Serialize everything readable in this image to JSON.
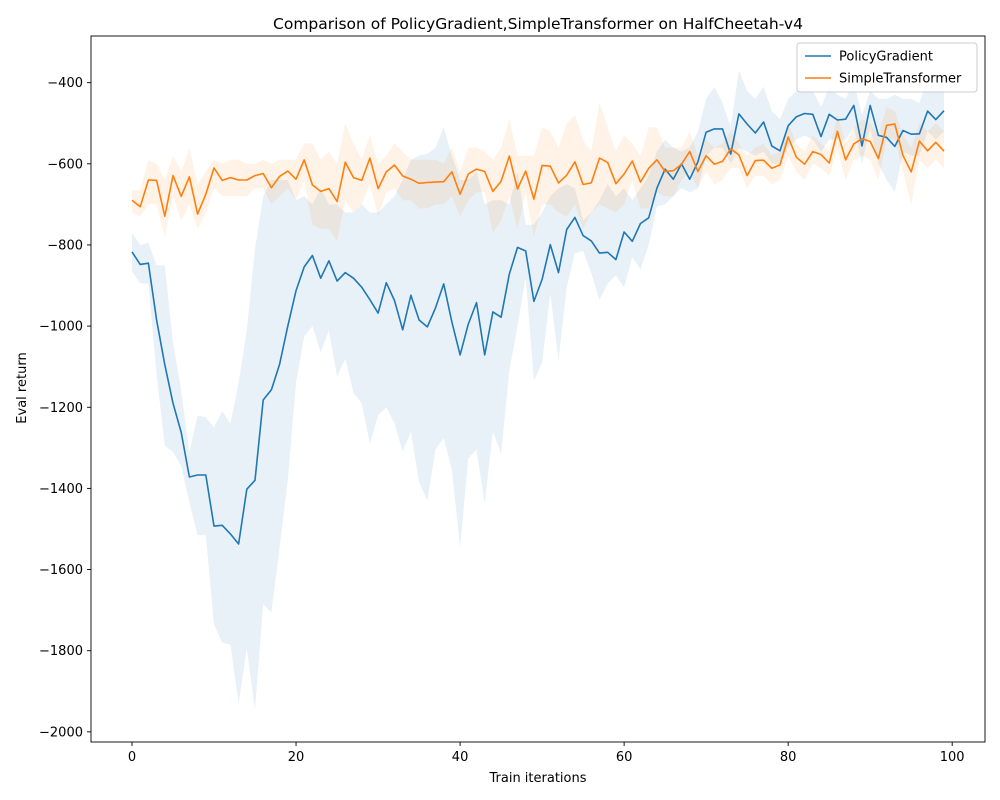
{
  "chart_data": {
    "type": "line",
    "title": "Comparison of PolicyGradient,SimpleTransformer on HalfCheetah-v4",
    "xlabel": "Train iterations",
    "ylabel": "Eval return",
    "xlim": [
      -5,
      104
    ],
    "ylim": [
      -2025,
      -285
    ],
    "xticks": [
      0,
      20,
      40,
      60,
      80,
      100
    ],
    "yticks": [
      -2000,
      -1800,
      -1600,
      -1400,
      -1200,
      -1000,
      -800,
      -600,
      -400
    ],
    "grid": false,
    "legend_position": "top-right",
    "series": [
      {
        "name": "PolicyGradient",
        "color": "#1f77b4",
        "values": [
          -817,
          -848,
          -845,
          -985,
          -1095,
          -1190,
          -1262,
          -1372,
          -1367,
          -1367,
          -1493,
          -1491,
          -1512,
          -1537,
          -1402,
          -1380,
          -1182,
          -1157,
          -1094,
          -1000,
          -913,
          -854,
          -826,
          -882,
          -839,
          -889,
          -868,
          -882,
          -904,
          -935,
          -968,
          -893,
          -937,
          -1009,
          -924,
          -985,
          -1002,
          -955,
          -896,
          -990,
          -1071,
          -995,
          -942,
          -1071,
          -965,
          -978,
          -872,
          -806,
          -815,
          -939,
          -885,
          -799,
          -868,
          -762,
          -732,
          -777,
          -790,
          -820,
          -818,
          -836,
          -768,
          -791,
          -747,
          -733,
          -660,
          -613,
          -638,
          -600,
          -638,
          -595,
          -522,
          -514,
          -514,
          -576,
          -477,
          -502,
          -524,
          -497,
          -556,
          -568,
          -506,
          -484,
          -476,
          -478,
          -533,
          -478,
          -492,
          -490,
          -456,
          -556,
          -456,
          -530,
          -535,
          -557,
          -518,
          -527,
          -526,
          -470,
          -491,
          -469
        ],
        "band_upper": [
          -770,
          -800,
          -795,
          -850,
          -850,
          -1040,
          -1160,
          -1310,
          -1220,
          -1225,
          -1250,
          -1210,
          -1240,
          -1140,
          -1010,
          -810,
          -680,
          -640,
          -640,
          -640,
          -690,
          -680,
          -700,
          -660,
          -700,
          -700,
          -720,
          -720,
          -700,
          -720,
          -720,
          -700,
          -680,
          -640,
          -590,
          -580,
          -575,
          -560,
          -510,
          -580,
          -640,
          -640,
          -620,
          -700,
          -690,
          -690,
          -700,
          -620,
          -750,
          -750,
          -720,
          -680,
          -660,
          -650,
          -660,
          -740,
          -720,
          -690,
          -650,
          -680,
          -660,
          -690,
          -660,
          -630,
          -570,
          -540,
          -560,
          -570,
          -560,
          -520,
          -440,
          -410,
          -450,
          -510,
          -370,
          -420,
          -440,
          -410,
          -470,
          -490,
          -440,
          -420,
          -410,
          -420,
          -460,
          -410,
          -430,
          -440,
          -400,
          -480,
          -420,
          -440,
          -440,
          -430,
          -440,
          -440,
          -450,
          -390,
          -420,
          -390
        ],
        "band_lower": [
          -865,
          -895,
          -895,
          -1120,
          -1295,
          -1310,
          -1345,
          -1435,
          -1515,
          -1515,
          -1735,
          -1780,
          -1785,
          -1930,
          -1795,
          -1945,
          -1685,
          -1705,
          -1545,
          -1380,
          -1140,
          -1025,
          -1000,
          -1065,
          -1010,
          -1125,
          -1080,
          -1165,
          -1190,
          -1290,
          -1220,
          -1200,
          -1240,
          -1310,
          -1260,
          -1385,
          -1430,
          -1305,
          -1275,
          -1355,
          -1545,
          -1325,
          -1305,
          -1435,
          -1260,
          -1315,
          -1110,
          -1000,
          -880,
          -1135,
          -1090,
          -920,
          -1085,
          -905,
          -820,
          -815,
          -870,
          -935,
          -895,
          -875,
          -905,
          -830,
          -860,
          -800,
          -705,
          -700,
          -680,
          -660,
          -670,
          -660,
          -580,
          -560,
          -560,
          -600,
          -560,
          -570,
          -580,
          -570,
          -600,
          -600,
          -560,
          -540,
          -530,
          -540,
          -570,
          -540,
          -540,
          -540,
          -510,
          -600,
          -510,
          -600,
          -640,
          -670,
          -570,
          -580,
          -580,
          -520,
          -540,
          -520
        ]
      },
      {
        "name": "SimpleTransformer",
        "color": "#ff7f0e",
        "values": [
          -690,
          -706,
          -640,
          -641,
          -729,
          -629,
          -680,
          -632,
          -724,
          -675,
          -610,
          -641,
          -634,
          -640,
          -640,
          -629,
          -624,
          -659,
          -631,
          -618,
          -638,
          -590,
          -652,
          -668,
          -661,
          -693,
          -596,
          -634,
          -641,
          -586,
          -661,
          -620,
          -603,
          -630,
          -638,
          -648,
          -646,
          -645,
          -644,
          -620,
          -675,
          -625,
          -613,
          -619,
          -668,
          -643,
          -581,
          -662,
          -618,
          -687,
          -604,
          -606,
          -647,
          -628,
          -595,
          -651,
          -647,
          -586,
          -597,
          -649,
          -625,
          -593,
          -645,
          -611,
          -590,
          -619,
          -617,
          -601,
          -570,
          -619,
          -580,
          -601,
          -594,
          -563,
          -578,
          -629,
          -592,
          -591,
          -611,
          -603,
          -534,
          -584,
          -601,
          -570,
          -577,
          -598,
          -520,
          -590,
          -551,
          -538,
          -545,
          -587,
          -505,
          -502,
          -580,
          -620,
          -544,
          -568,
          -547,
          -569
        ],
        "band_upper": [
          -665,
          -665,
          -590,
          -600,
          -640,
          -580,
          -620,
          -560,
          -650,
          -620,
          -590,
          -600,
          -590,
          -590,
          -600,
          -600,
          -590,
          -600,
          -590,
          -590,
          -590,
          -550,
          -550,
          -590,
          -570,
          -600,
          -500,
          -550,
          -590,
          -530,
          -600,
          -580,
          -550,
          -570,
          -590,
          -590,
          -590,
          -590,
          -600,
          -560,
          -620,
          -560,
          -560,
          -570,
          -590,
          -560,
          -490,
          -580,
          -580,
          -580,
          -510,
          -520,
          -560,
          -500,
          -480,
          -540,
          -570,
          -450,
          -510,
          -570,
          -530,
          -550,
          -580,
          -510,
          -510,
          -560,
          -560,
          -560,
          -520,
          -580,
          -540,
          -560,
          -550,
          -520,
          -550,
          -580,
          -560,
          -550,
          -580,
          -570,
          -500,
          -550,
          -570,
          -530,
          -550,
          -570,
          -480,
          -550,
          -510,
          -490,
          -500,
          -530,
          -460,
          -470,
          -530,
          -560,
          -500,
          -520,
          -500,
          -520
        ],
        "band_lower": [
          -720,
          -730,
          -700,
          -700,
          -780,
          -680,
          -740,
          -700,
          -760,
          -720,
          -660,
          -680,
          -680,
          -680,
          -680,
          -660,
          -660,
          -700,
          -680,
          -660,
          -690,
          -640,
          -750,
          -760,
          -760,
          -790,
          -690,
          -720,
          -700,
          -650,
          -730,
          -670,
          -660,
          -690,
          -690,
          -710,
          -710,
          -700,
          -700,
          -680,
          -730,
          -690,
          -670,
          -670,
          -770,
          -740,
          -680,
          -760,
          -670,
          -780,
          -700,
          -700,
          -720,
          -730,
          -700,
          -760,
          -720,
          -700,
          -710,
          -720,
          -700,
          -640,
          -710,
          -710,
          -670,
          -680,
          -680,
          -640,
          -620,
          -660,
          -620,
          -650,
          -640,
          -610,
          -610,
          -660,
          -630,
          -630,
          -650,
          -640,
          -580,
          -620,
          -640,
          -600,
          -610,
          -630,
          -560,
          -640,
          -590,
          -580,
          -590,
          -640,
          -540,
          -540,
          -620,
          -700,
          -590,
          -610,
          -590,
          -610
        ]
      }
    ]
  }
}
